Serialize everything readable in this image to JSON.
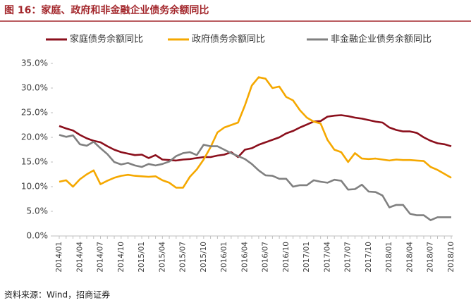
{
  "chart_data": {
    "type": "line",
    "title": "图 16：家庭、政府和非金融企业债务余额同比",
    "source": "资料来源：Wind，招商证券",
    "categories": [
      "2014/01",
      null,
      null,
      "2014/04",
      null,
      null,
      "2014/07",
      null,
      null,
      "2014/10",
      null,
      null,
      "2015/01",
      null,
      null,
      "2015/04",
      null,
      null,
      "2015/07",
      null,
      null,
      "2015/10",
      null,
      null,
      "2016/01",
      null,
      null,
      "2016/04",
      null,
      null,
      "2016/07",
      null,
      null,
      "2016/10",
      null,
      null,
      "2017/01",
      null,
      null,
      "2017/04",
      null,
      null,
      "2017/07",
      null,
      null,
      "2017/10",
      null,
      null,
      "2018/01",
      null,
      null,
      "2018/04",
      null,
      null,
      "2018/07",
      null,
      null,
      "2018/10"
    ],
    "series": [
      {
        "name": "家庭债务余额同比",
        "color": "#8b0f1c",
        "values": [
          22.3,
          21.8,
          21.4,
          20.5,
          19.8,
          19.3,
          19.0,
          18.2,
          17.5,
          17.0,
          16.7,
          16.4,
          16.5,
          15.8,
          16.4,
          15.5,
          15.4,
          15.3,
          15.5,
          15.6,
          15.8,
          16.0,
          16.0,
          16.3,
          16.5,
          17.0,
          16.0,
          17.5,
          17.8,
          18.5,
          19.0,
          19.5,
          20.0,
          20.8,
          21.3,
          22.0,
          22.6,
          23.2,
          23.3,
          24.2,
          24.4,
          24.5,
          24.3,
          24.0,
          23.8,
          23.5,
          23.2,
          23.0,
          22.0,
          21.5,
          21.2,
          21.2,
          20.9,
          20.0,
          19.3,
          18.8,
          18.6,
          18.2
        ]
      },
      {
        "name": "政府债务余额同比",
        "color": "#f5a800",
        "values": [
          11.0,
          11.3,
          10.0,
          11.5,
          12.5,
          13.3,
          10.5,
          11.2,
          11.8,
          12.2,
          12.4,
          12.2,
          12.1,
          12.0,
          12.1,
          11.3,
          10.8,
          9.8,
          9.8,
          12.0,
          13.5,
          15.5,
          18.0,
          21.0,
          22.0,
          22.5,
          23.0,
          26.5,
          30.5,
          32.2,
          31.9,
          30.0,
          30.3,
          28.2,
          27.5,
          25.5,
          24.0,
          23.2,
          22.8,
          19.5,
          17.5,
          17.0,
          15.0,
          16.8,
          15.7,
          15.6,
          15.7,
          15.5,
          15.3,
          15.5,
          15.4,
          15.4,
          15.3,
          15.2,
          14.0,
          13.4,
          12.6,
          11.8
        ]
      },
      {
        "name": "非金融企业债务余额同比",
        "color": "#808080",
        "values": [
          20.5,
          20.1,
          20.4,
          18.6,
          18.3,
          19.1,
          17.8,
          16.6,
          15.0,
          14.5,
          14.8,
          14.3,
          14.0,
          14.6,
          14.3,
          14.6,
          15.1,
          16.2,
          16.8,
          17.0,
          16.4,
          18.5,
          18.2,
          18.2,
          17.5,
          16.8,
          16.2,
          15.6,
          14.6,
          13.3,
          12.3,
          12.2,
          11.6,
          11.6,
          10.0,
          10.3,
          10.3,
          11.3,
          11.0,
          10.8,
          11.4,
          11.2,
          9.4,
          9.5,
          10.4,
          9.0,
          8.9,
          8.2,
          5.8,
          6.3,
          6.3,
          4.5,
          4.2,
          4.2,
          3.2,
          3.8,
          3.8,
          3.8
        ]
      }
    ],
    "ylim": [
      0,
      35
    ],
    "yticks": [
      {
        "value": 0,
        "label": "0.0%"
      },
      {
        "value": 5,
        "label": "5.0%"
      },
      {
        "value": 10,
        "label": "10.0%"
      },
      {
        "value": 15,
        "label": "15.0%"
      },
      {
        "value": 20,
        "label": "20.0%"
      },
      {
        "value": 25,
        "label": "25.0%"
      },
      {
        "value": 30,
        "label": "30.0%"
      },
      {
        "value": 35,
        "label": "35.0%"
      }
    ],
    "legend": "top"
  }
}
